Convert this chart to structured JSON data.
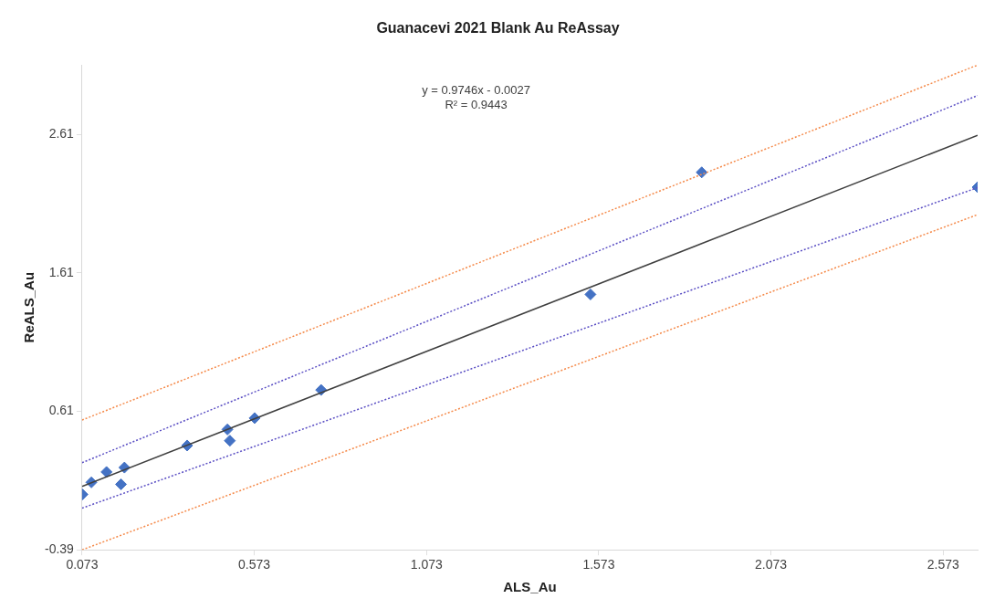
{
  "chart_data": {
    "type": "scatter",
    "title": "Guanacevi 2021 Blank Au ReAssay",
    "xlabel": "ALS_Au",
    "ylabel": "ReALS_Au",
    "xlim": [
      0.073,
      2.673
    ],
    "xticks": [
      0.073,
      0.573,
      1.073,
      1.573,
      2.073,
      2.573
    ],
    "ylim": [
      -0.39,
      3.11
    ],
    "yticks": [
      -0.39,
      0.61,
      1.61,
      2.61
    ],
    "grid": false,
    "legend": false,
    "marker": "diamond",
    "annotations": [
      "y = 0.9746x - 0.0027",
      "R² = 0.9443"
    ],
    "series": [
      {
        "type": "scatter",
        "color": "#4472c4",
        "x": [
          0.074,
          0.1,
          0.144,
          0.196,
          0.186,
          0.378,
          0.495,
          0.502,
          0.574,
          0.767,
          1.549,
          1.872,
          2.673
        ],
        "values": [
          0.01,
          0.097,
          0.172,
          0.204,
          0.083,
          0.363,
          0.479,
          0.398,
          0.561,
          0.764,
          1.454,
          2.335,
          2.228
        ]
      },
      {
        "type": "line",
        "color": "#404040",
        "marker": "none",
        "line_style": "solid",
        "x": [
          0.073,
          2.673
        ],
        "values": [
          0.068,
          2.602
        ]
      },
      {
        "type": "line",
        "color": "#5b4fc4",
        "marker": "none",
        "line_style": "dotted",
        "x": [
          0.073,
          2.673
        ],
        "values": [
          0.239,
          2.89
        ]
      },
      {
        "type": "line",
        "color": "#5b4fc4",
        "marker": "none",
        "line_style": "dotted",
        "x": [
          0.073,
          2.673
        ],
        "values": [
          -0.089,
          2.225
        ]
      },
      {
        "type": "line",
        "color": "#f58a4a",
        "marker": "none",
        "line_style": "dotted",
        "x": [
          0.073,
          2.673
        ],
        "values": [
          0.547,
          3.11
        ]
      },
      {
        "type": "line",
        "color": "#f58a4a",
        "marker": "none",
        "line_style": "dotted",
        "x": [
          0.073,
          2.673
        ],
        "values": [
          -0.39,
          2.03
        ]
      }
    ]
  }
}
